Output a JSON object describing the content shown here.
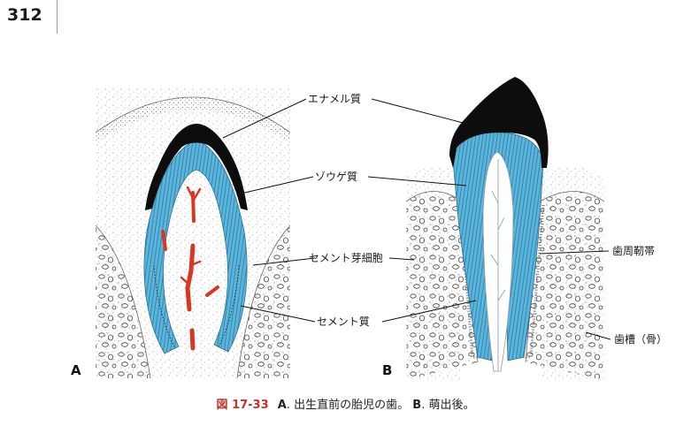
{
  "page_number": "312",
  "labels": {
    "enamel": "エナメル質",
    "dentin": "ゾウゲ質",
    "cementoblast": "セメント芽細胞",
    "cementum": "セメント質",
    "periodontal_ligament": "歯周靭帯",
    "alveolus": "歯槽（骨）"
  },
  "panel_labels": {
    "a": "A",
    "b": "B"
  },
  "caption": {
    "figure_number": "図 17-33",
    "a_letter": "A",
    "a_text": ". 出生直前の胎児の歯。",
    "b_letter": "B",
    "b_text": ". 萌出後。"
  },
  "colors": {
    "enamel": "#0d0d0d",
    "dentin": "#5bb6de",
    "blood_vessel": "#d8361e",
    "figure_number": "#c8302a"
  }
}
